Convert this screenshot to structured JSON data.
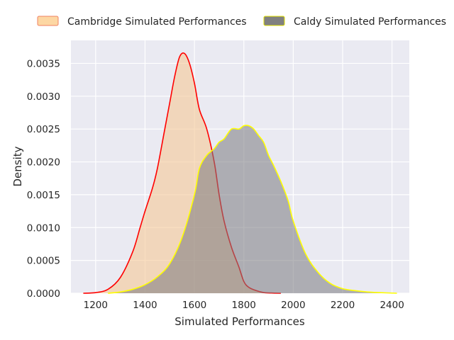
{
  "chart_data": {
    "type": "area",
    "xlabel": "Simulated Performances",
    "ylabel": "Density",
    "xlim": [
      1100,
      2470
    ],
    "ylim": [
      0,
      0.00385
    ],
    "x_ticks": [
      1200,
      1400,
      1600,
      1800,
      2000,
      2200,
      2400
    ],
    "x_tick_labels": [
      "1200",
      "1400",
      "1600",
      "1800",
      "2000",
      "2200",
      "2400"
    ],
    "y_ticks": [
      0,
      0.0005,
      0.001,
      0.0015,
      0.002,
      0.0025,
      0.003,
      0.0035
    ],
    "y_tick_labels": [
      "0.0000",
      "0.0005",
      "0.0010",
      "0.0015",
      "0.0020",
      "0.0025",
      "0.0030",
      "0.0035"
    ],
    "grid": true,
    "legend_position": "top",
    "series": [
      {
        "name": "Cambridge Simulated Performances",
        "fill_color": "#f5c99a",
        "line_color": "#ff0000",
        "legend_patch_color": "#fdd7a3",
        "legend_edge_color": "#f08060",
        "x": [
          1150,
          1200,
          1250,
          1300,
          1350,
          1380,
          1400,
          1430,
          1450,
          1480,
          1500,
          1520,
          1540,
          1560,
          1580,
          1600,
          1620,
          1650,
          1680,
          1700,
          1720,
          1750,
          1780,
          1800,
          1820,
          1850,
          1880,
          1900,
          1950
        ],
        "y": [
          0.0,
          1e-05,
          6e-05,
          0.00024,
          0.00063,
          0.001,
          0.00125,
          0.0016,
          0.0019,
          0.0025,
          0.0029,
          0.0033,
          0.0036,
          0.00365,
          0.0035,
          0.0032,
          0.0028,
          0.0025,
          0.002,
          0.0015,
          0.0011,
          0.0007,
          0.0004,
          0.00018,
          9e-05,
          4e-05,
          1e-05,
          5e-06,
          0.0
        ]
      },
      {
        "name": "Caldy Simulated Performances",
        "fill_color": "#7a7a80",
        "line_color": "#ffff00",
        "legend_patch_color": "#808080",
        "legend_edge_color": "#e0e000",
        "x": [
          1250,
          1300,
          1350,
          1400,
          1450,
          1500,
          1550,
          1600,
          1620,
          1650,
          1680,
          1700,
          1720,
          1750,
          1780,
          1800,
          1820,
          1840,
          1860,
          1880,
          1900,
          1920,
          1950,
          1980,
          2000,
          2050,
          2100,
          2150,
          2200,
          2250,
          2300,
          2350,
          2420
        ],
        "y": [
          0.0,
          2e-05,
          6e-05,
          0.00013,
          0.00025,
          0.00045,
          0.00085,
          0.0015,
          0.0019,
          0.0021,
          0.0022,
          0.0023,
          0.00235,
          0.0025,
          0.0025,
          0.00255,
          0.00255,
          0.0025,
          0.0024,
          0.0023,
          0.0021,
          0.00195,
          0.0017,
          0.0014,
          0.0011,
          0.0006,
          0.00032,
          0.00015,
          7e-05,
          4e-05,
          2e-05,
          1e-05,
          0.0
        ]
      }
    ]
  }
}
